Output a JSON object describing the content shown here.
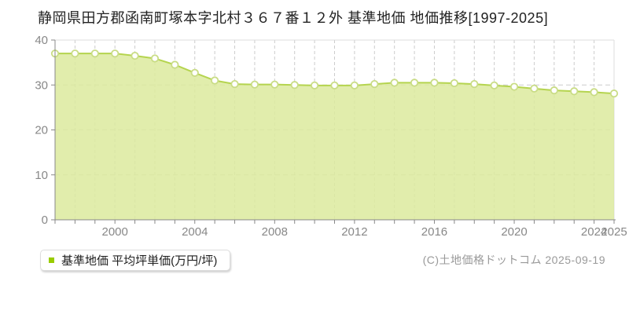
{
  "title": "静岡県田方郡函南町塚本字北村３６７番１２外 基準地価 地価推移[1997-2025]",
  "legend": {
    "label": "基準地価 平均坪単価(万円/坪)",
    "marker_color": "#99cc00"
  },
  "copyright": "(C)土地価格ドットコム 2025-09-19",
  "colors": {
    "line": "#b5d44f",
    "fill": "#dcea9e",
    "marker_ring": "#c9dc85",
    "axis": "#888888",
    "grid": "#cccccc",
    "border": "#dddddd",
    "tick_label": "#888888"
  },
  "chart_data": {
    "type": "area",
    "title": "静岡県田方郡函南町塚本字北村３６７番１２外 基準地価 地価推移[1997-2025]",
    "x": [
      1997,
      1998,
      1999,
      2000,
      2001,
      2002,
      2003,
      2004,
      2005,
      2006,
      2007,
      2008,
      2009,
      2010,
      2011,
      2012,
      2013,
      2014,
      2015,
      2016,
      2017,
      2018,
      2019,
      2020,
      2021,
      2022,
      2023,
      2024,
      2025
    ],
    "series": [
      {
        "name": "基準地価 平均坪単価(万円/坪)",
        "values": [
          37.0,
          37.0,
          37.0,
          37.0,
          36.5,
          35.9,
          34.5,
          32.7,
          31.0,
          30.2,
          30.1,
          30.1,
          30.0,
          29.9,
          29.9,
          29.9,
          30.2,
          30.5,
          30.5,
          30.5,
          30.4,
          30.2,
          29.9,
          29.6,
          29.2,
          28.8,
          28.6,
          28.4,
          28.1
        ]
      }
    ],
    "xlabel": "",
    "ylabel": "",
    "ylim": [
      0,
      40
    ],
    "yticks": [
      0,
      10,
      20,
      30,
      40
    ],
    "xtick_labels": [
      2000,
      2004,
      2008,
      2012,
      2016,
      2020,
      2024,
      2025
    ],
    "grid": true,
    "legend_position": "bottom-left"
  }
}
